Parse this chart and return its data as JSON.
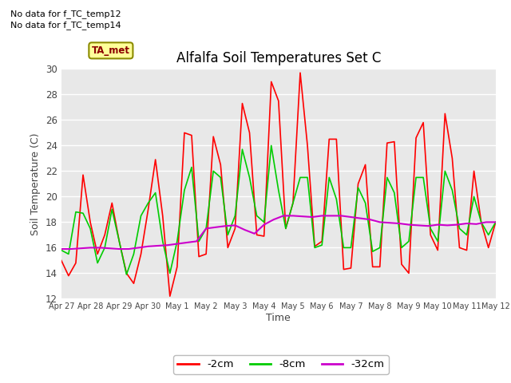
{
  "title": "Alfalfa Soil Temperatures Set C",
  "xlabel": "Time",
  "ylabel": "Soil Temperature (C)",
  "ylim": [
    12,
    30
  ],
  "xlim": [
    0,
    15
  ],
  "fig_bg_color": "#ffffff",
  "plot_bg_color": "#e8e8e8",
  "annotations": [
    "No data for f_TC_temp12",
    "No data for f_TC_temp14"
  ],
  "legend_label": "TA_met",
  "x_tick_labels": [
    "Apr 27",
    "Apr 28",
    "Apr 29",
    "Apr 30",
    "May 1",
    "May 2",
    "May 3",
    "May 4",
    "May 5",
    "May 6",
    "May 7",
    "May 8",
    "May 9",
    "May 10",
    "May 11",
    "May 12"
  ],
  "x_tick_positions": [
    0,
    1,
    2,
    3,
    4,
    5,
    6,
    7,
    8,
    9,
    10,
    11,
    12,
    13,
    14,
    15
  ],
  "yticks": [
    12,
    14,
    16,
    18,
    20,
    22,
    24,
    26,
    28,
    30
  ],
  "series": {
    "red_2cm": {
      "color": "#ff0000",
      "label": "-2cm",
      "x": [
        0,
        0.25,
        0.5,
        0.75,
        1.0,
        1.25,
        1.5,
        1.75,
        2.0,
        2.25,
        2.5,
        2.75,
        3.0,
        3.25,
        3.5,
        3.75,
        4.0,
        4.25,
        4.5,
        4.75,
        5.0,
        5.25,
        5.5,
        5.75,
        6.0,
        6.25,
        6.5,
        6.75,
        7.0,
        7.25,
        7.5,
        7.75,
        8.0,
        8.25,
        8.5,
        8.75,
        9.0,
        9.25,
        9.5,
        9.75,
        10.0,
        10.25,
        10.5,
        10.75,
        11.0,
        11.25,
        11.5,
        11.75,
        12.0,
        12.25,
        12.5,
        12.75,
        13.0,
        13.25,
        13.5,
        13.75,
        14.0,
        14.25,
        14.5,
        14.75,
        15.0
      ],
      "y": [
        15.0,
        13.8,
        14.8,
        21.7,
        18.0,
        15.5,
        17.0,
        19.5,
        16.5,
        14.0,
        13.2,
        15.5,
        19.0,
        22.9,
        18.5,
        12.2,
        14.5,
        25.0,
        24.8,
        15.3,
        15.5,
        24.7,
        22.5,
        16.0,
        17.5,
        27.3,
        25.0,
        17.0,
        16.9,
        29.0,
        27.5,
        17.5,
        19.5,
        29.7,
        24.0,
        16.1,
        16.5,
        24.5,
        24.5,
        14.3,
        14.4,
        21.0,
        22.5,
        14.5,
        14.5,
        24.2,
        24.3,
        14.7,
        14.0,
        24.6,
        25.8,
        17.0,
        15.8,
        26.5,
        23.0,
        16.0,
        15.8,
        22.0,
        18.0,
        16.0,
        18.0
      ]
    },
    "green_8cm": {
      "color": "#00cc00",
      "label": "-8cm",
      "x": [
        0,
        0.25,
        0.5,
        0.75,
        1.0,
        1.25,
        1.5,
        1.75,
        2.0,
        2.25,
        2.5,
        2.75,
        3.0,
        3.25,
        3.5,
        3.75,
        4.0,
        4.25,
        4.5,
        4.75,
        5.0,
        5.25,
        5.5,
        5.75,
        6.0,
        6.25,
        6.5,
        6.75,
        7.0,
        7.25,
        7.5,
        7.75,
        8.0,
        8.25,
        8.5,
        8.75,
        9.0,
        9.25,
        9.5,
        9.75,
        10.0,
        10.25,
        10.5,
        10.75,
        11.0,
        11.25,
        11.5,
        11.75,
        12.0,
        12.25,
        12.5,
        12.75,
        13.0,
        13.25,
        13.5,
        13.75,
        14.0,
        14.25,
        14.5,
        14.75,
        15.0
      ],
      "y": [
        15.8,
        15.5,
        18.8,
        18.7,
        17.5,
        14.8,
        16.0,
        19.0,
        16.5,
        13.9,
        15.5,
        18.5,
        19.5,
        20.3,
        16.5,
        14.0,
        16.5,
        20.5,
        22.3,
        16.5,
        17.5,
        22.0,
        21.5,
        17.0,
        18.5,
        23.7,
        21.5,
        18.5,
        18.0,
        24.0,
        20.5,
        17.5,
        19.5,
        21.5,
        21.5,
        16.0,
        16.2,
        21.5,
        19.8,
        16.0,
        16.0,
        20.7,
        19.5,
        15.7,
        16.0,
        21.5,
        20.3,
        16.0,
        16.5,
        21.5,
        21.5,
        17.5,
        16.5,
        22.0,
        20.5,
        17.5,
        17.0,
        20.0,
        18.0,
        17.0,
        18.0
      ]
    },
    "purple_32cm": {
      "color": "#cc00cc",
      "label": "-32cm",
      "x": [
        0,
        0.33,
        0.67,
        1.0,
        1.33,
        1.67,
        2.0,
        2.33,
        2.67,
        3.0,
        3.33,
        3.67,
        4.0,
        4.33,
        4.67,
        5.0,
        5.33,
        5.67,
        6.0,
        6.33,
        6.67,
        7.0,
        7.33,
        7.67,
        8.0,
        8.33,
        8.67,
        9.0,
        9.33,
        9.67,
        10.0,
        10.33,
        10.67,
        11.0,
        11.33,
        11.67,
        12.0,
        12.33,
        12.67,
        13.0,
        13.33,
        13.67,
        14.0,
        14.33,
        14.67,
        15.0
      ],
      "y": [
        15.9,
        15.9,
        15.95,
        16.0,
        16.0,
        15.95,
        15.9,
        15.9,
        16.0,
        16.1,
        16.15,
        16.2,
        16.3,
        16.4,
        16.5,
        17.5,
        17.6,
        17.7,
        17.75,
        17.4,
        17.1,
        17.8,
        18.2,
        18.5,
        18.5,
        18.45,
        18.4,
        18.5,
        18.5,
        18.5,
        18.4,
        18.3,
        18.2,
        18.0,
        17.95,
        17.9,
        17.8,
        17.75,
        17.7,
        17.8,
        17.75,
        17.8,
        17.9,
        17.85,
        18.0,
        18.0
      ]
    }
  }
}
